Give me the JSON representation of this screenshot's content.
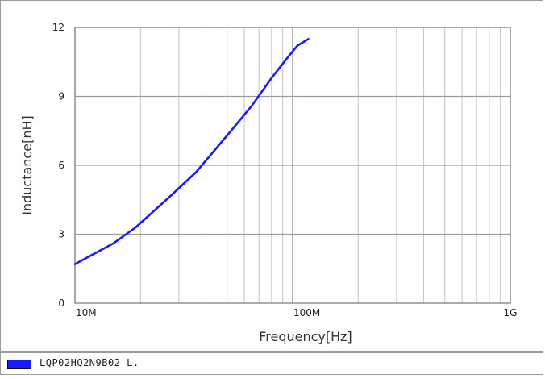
{
  "chart_data": {
    "type": "line",
    "x_scale": "log",
    "xlabel": "Frequency[Hz]",
    "ylabel": "Inductance[nH]",
    "xlim": [
      10000000,
      1000000000
    ],
    "ylim": [
      0,
      12
    ],
    "x_ticks": [
      {
        "value": 10000000,
        "label": "10M"
      },
      {
        "value": 100000000,
        "label": "100M"
      },
      {
        "value": 1000000000,
        "label": "1G"
      }
    ],
    "y_ticks": [
      {
        "value": 0,
        "label": "0"
      },
      {
        "value": 3,
        "label": "3"
      },
      {
        "value": 6,
        "label": "6"
      },
      {
        "value": 9,
        "label": "9"
      },
      {
        "value": 12,
        "label": "12"
      }
    ],
    "grid": true,
    "legend_position": "bottom",
    "series": [
      {
        "name": "LQP02HQ2N9B02  L.",
        "color": "#1a1aff",
        "points": [
          [
            10000000,
            1.7
          ],
          [
            15000000,
            2.6
          ],
          [
            19000000,
            3.3
          ],
          [
            27000000,
            4.6
          ],
          [
            36000000,
            5.7
          ],
          [
            50000000,
            7.3
          ],
          [
            65000000,
            8.6
          ],
          [
            80000000,
            9.8
          ],
          [
            95000000,
            10.7
          ],
          [
            105000000,
            11.2
          ],
          [
            118000000,
            11.5
          ]
        ]
      }
    ]
  }
}
